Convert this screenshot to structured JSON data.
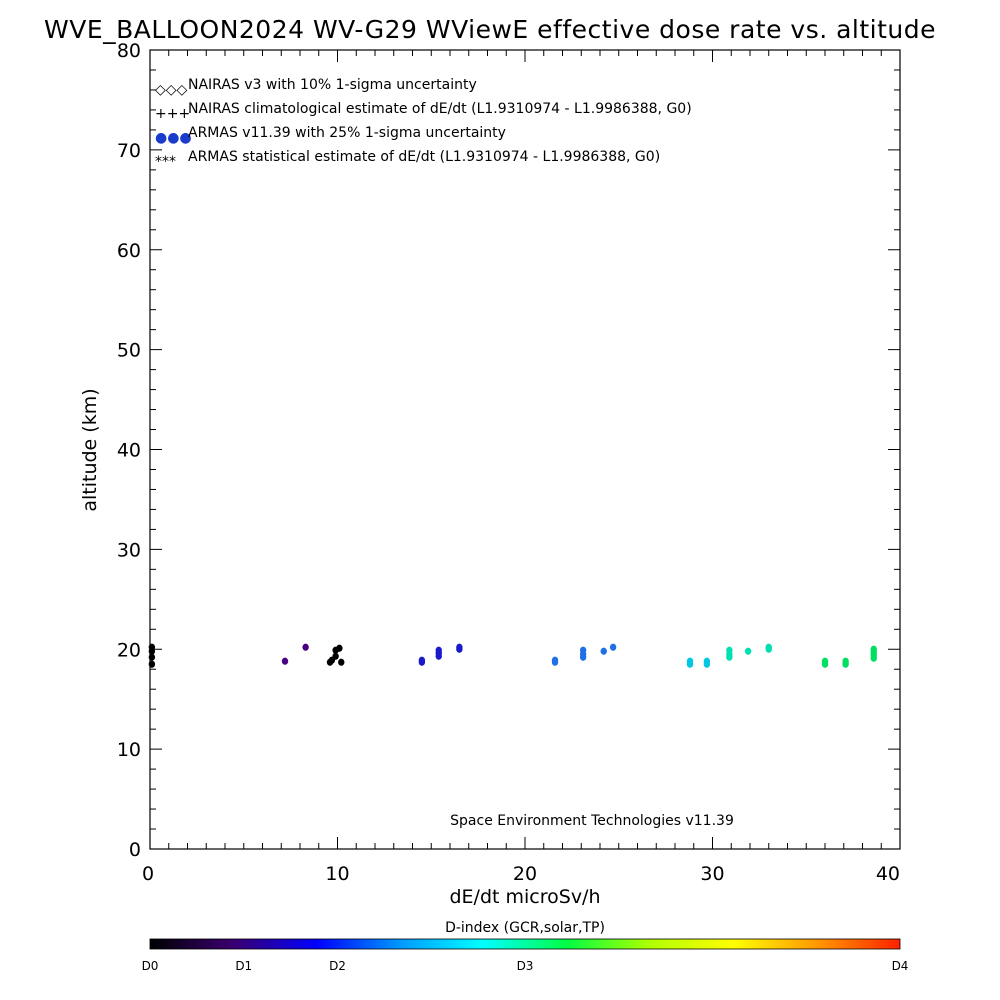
{
  "chart_data": {
    "type": "scatter",
    "title": "WVE_BALLOON2024 WV-G29 WViewE effective dose rate vs. altitude",
    "xlabel": "dE/dt microSv/h",
    "ylabel": "altitude (km)",
    "xlim": [
      0,
      40
    ],
    "ylim": [
      0,
      80
    ],
    "x_ticks": [
      "0",
      "10",
      "20",
      "30",
      "40"
    ],
    "y_ticks": [
      "0",
      "10",
      "20",
      "30",
      "40",
      "50",
      "60",
      "70",
      "80"
    ],
    "grid": false,
    "legend_placement": "top-left",
    "legend": [
      {
        "symbol": "◇◇◇",
        "label": "NAIRAS v3 with 10% 1-sigma uncertainty"
      },
      {
        "symbol": "+++",
        "label": "NAIRAS climatological estimate of dE/dt (L1.9310974 - L1.9986388, G0)"
      },
      {
        "symbol": "●●●",
        "label": "ARMAS v11.39 with 25% 1-sigma uncertainty"
      },
      {
        "symbol": "***",
        "label": "ARMAS statistical estimate of dE/dt (L1.9310974 - L1.9986388, G0)"
      }
    ],
    "annotation": "Space Environment Technologies v11.39",
    "colorbar": {
      "title": "D-index (GCR,solar,TP)",
      "labels": [
        {
          "text": "D0",
          "value": 0
        },
        {
          "text": "D1",
          "value": 5
        },
        {
          "text": "D2",
          "value": 10
        },
        {
          "text": "D3",
          "value": 20
        },
        {
          "text": "D4",
          "value": 40
        }
      ],
      "colors": [
        "#000000",
        "#3a0070",
        "#0000ff",
        "#0099ff",
        "#00ffff",
        "#00ff44",
        "#b0ff00",
        "#ffff00",
        "#ff9900",
        "#ff2200"
      ]
    },
    "series": [
      {
        "color": "#000000",
        "points": [
          [
            0.1,
            18.5
          ],
          [
            0.1,
            19.2
          ],
          [
            0.1,
            19.8
          ],
          [
            0.1,
            20.2
          ],
          [
            9.6,
            18.7
          ],
          [
            9.9,
            19.3
          ],
          [
            9.9,
            19.9
          ],
          [
            10.1,
            20.1
          ],
          [
            10.2,
            18.7
          ],
          [
            9.7,
            18.9
          ]
        ]
      },
      {
        "color": "#4b0082",
        "points": [
          [
            7.2,
            18.8
          ],
          [
            8.3,
            20.2
          ]
        ]
      },
      {
        "color": "#1a1acc",
        "points": [
          [
            14.5,
            18.7
          ],
          [
            14.5,
            18.9
          ],
          [
            15.4,
            19.3
          ],
          [
            15.4,
            19.6
          ],
          [
            15.4,
            19.9
          ],
          [
            16.5,
            20.0
          ],
          [
            16.5,
            20.2
          ]
        ]
      },
      {
        "color": "#1e70e6",
        "points": [
          [
            21.6,
            18.7
          ],
          [
            21.6,
            18.9
          ],
          [
            23.1,
            19.2
          ],
          [
            23.1,
            19.5
          ],
          [
            23.1,
            19.9
          ],
          [
            24.2,
            19.8
          ],
          [
            24.7,
            20.2
          ]
        ]
      },
      {
        "color": "#00c8e0",
        "points": [
          [
            28.8,
            18.5
          ],
          [
            28.8,
            18.8
          ],
          [
            29.7,
            18.5
          ],
          [
            29.7,
            18.8
          ]
        ]
      },
      {
        "color": "#00e0b0",
        "points": [
          [
            30.9,
            19.2
          ],
          [
            30.9,
            19.5
          ],
          [
            30.9,
            19.9
          ],
          [
            31.9,
            19.8
          ],
          [
            33.0,
            20.0
          ],
          [
            33.0,
            20.2
          ]
        ]
      },
      {
        "color": "#00e060",
        "points": [
          [
            36.0,
            18.5
          ],
          [
            36.0,
            18.8
          ],
          [
            37.1,
            18.5
          ],
          [
            37.1,
            18.8
          ],
          [
            38.6,
            19.1
          ],
          [
            38.6,
            19.4
          ],
          [
            38.6,
            19.7
          ],
          [
            38.6,
            20.0
          ]
        ]
      }
    ]
  }
}
